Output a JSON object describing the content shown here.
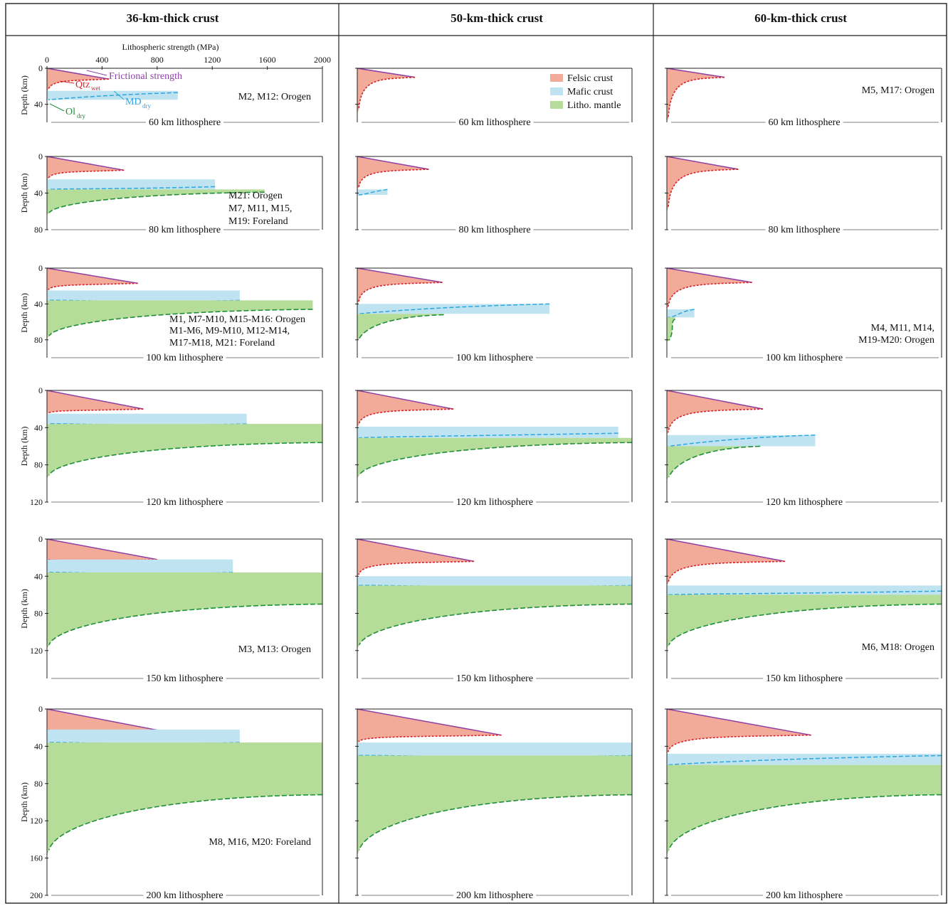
{
  "columns": [
    "36-km-thick crust",
    "50-km-thick crust",
    "60-km-thick crust"
  ],
  "axes": {
    "x_title": "Lithospheric strength (MPa)",
    "x_ticks": [
      "0",
      "400",
      "800",
      "1200",
      "1600",
      "2000"
    ],
    "y_title": "Depth (km)"
  },
  "legend": [
    {
      "label": "Felsic crust",
      "color": "#f2aa99"
    },
    {
      "label": "Mafic crust",
      "color": "#bfe3f0"
    },
    {
      "label": "Litho. mantle",
      "color": "#b5dc98"
    }
  ],
  "curve_labels": {
    "frictional": "Frictional strength",
    "qtz": "Qtz",
    "qtz_sub": "wet",
    "md": "MD",
    "md_sub": "dry",
    "ol": "Ol",
    "ol_sub": "dry"
  },
  "colors": {
    "felsic": "#f2aa99",
    "mafic": "#bfe3f0",
    "mantle": "#b5dc98",
    "frictional_line": "#8e3fa6",
    "qtz_line": "#d8242a",
    "md_line": "#2aa7e0",
    "ol_line": "#1f8f3a"
  },
  "rows": [
    {
      "lithosphere": "60 km lithosphere",
      "max_depth": 60,
      "y_ticks": [
        "0",
        "40"
      ],
      "notes": [
        [
          "M2, M12: Orogen"
        ],
        [],
        [
          "M5, M17: Orogen"
        ]
      ]
    },
    {
      "lithosphere": "80 km lithosphere",
      "max_depth": 80,
      "y_ticks": [
        "0",
        "40",
        "80"
      ],
      "notes": [
        [
          "M21: Orogen",
          "M7, M11, M15,",
          "M19: Foreland"
        ],
        [],
        []
      ]
    },
    {
      "lithosphere": "100 km lithosphere",
      "max_depth": 100,
      "y_ticks": [
        "0",
        "40",
        "80"
      ],
      "notes": [
        [
          "M1, M7-M10, M15-M16: Orogen",
          "M1-M6, M9-M10, M12-M14,",
          "M17-M18, M21: Foreland"
        ],
        [],
        [
          "M4, M11, M14,",
          "M19-M20: Orogen"
        ]
      ]
    },
    {
      "lithosphere": "120 km lithosphere",
      "max_depth": 120,
      "y_ticks": [
        "0",
        "40",
        "80",
        "120"
      ],
      "notes": [
        [],
        [],
        []
      ]
    },
    {
      "lithosphere": "150 km lithosphere",
      "max_depth": 150,
      "y_ticks": [
        "0",
        "40",
        "80",
        "120"
      ],
      "notes": [
        [
          "M3, M13: Orogen"
        ],
        [],
        [
          "M6, M18: Orogen"
        ]
      ]
    },
    {
      "lithosphere": "200 km lithosphere",
      "max_depth": 200,
      "y_ticks": [
        "0",
        "40",
        "80",
        "120",
        "160",
        "200"
      ],
      "notes": [
        [
          "M8, M16, M20: Foreland"
        ],
        [],
        []
      ]
    }
  ],
  "profiles": {
    "36": [
      {
        "felsic_peak": [
          450,
          12
        ],
        "mafic": [
          25,
          35
        ],
        "mafic_peak": [
          950,
          27
        ],
        "mantle_peak": [
          0,
          46
        ],
        "max": 0
      },
      {
        "felsic_peak": [
          560,
          15
        ],
        "mafic": [
          25,
          36
        ],
        "mafic_peak": [
          1220,
          33
        ],
        "mantle_peak": [
          1580,
          39
        ]
      },
      {
        "felsic_peak": [
          660,
          17
        ],
        "mafic": [
          25,
          36
        ],
        "mafic_peak": [
          1400,
          36
        ],
        "mantle_peak": [
          1930,
          46
        ]
      },
      {
        "felsic_peak": [
          700,
          20
        ],
        "mafic": [
          25,
          36
        ],
        "mafic_peak": [
          1450,
          36
        ],
        "mantle_peak": [
          2000,
          56
        ]
      },
      {
        "felsic_peak": [
          800,
          22
        ],
        "mafic": [
          22,
          36
        ],
        "mafic_peak": [
          1350,
          36
        ],
        "mantle_peak": [
          2000,
          70
        ]
      },
      {
        "felsic_peak": [
          850,
          24
        ],
        "mafic": [
          22,
          36
        ],
        "mafic_peak": [
          1400,
          36
        ],
        "mantle_peak": [
          2000,
          92
        ]
      }
    ],
    "50": [
      {
        "felsic_peak": [
          420,
          10
        ],
        "mafic": [
          0,
          0
        ],
        "mafic_peak": [
          0,
          40
        ],
        "mantle_peak": [
          0,
          55
        ]
      },
      {
        "felsic_peak": [
          520,
          14
        ],
        "mafic": [
          36,
          42
        ],
        "mafic_peak": [
          220,
          36
        ],
        "mantle_peak": [
          0,
          55
        ]
      },
      {
        "felsic_peak": [
          620,
          16
        ],
        "mafic": [
          40,
          51
        ],
        "mafic_peak": [
          1400,
          40
        ],
        "mantle_peak": [
          630,
          52
        ]
      },
      {
        "felsic_peak": [
          700,
          20
        ],
        "mafic": [
          39,
          51
        ],
        "mafic_peak": [
          1900,
          46
        ],
        "mantle_peak": [
          2000,
          56
        ]
      },
      {
        "felsic_peak": [
          850,
          24
        ],
        "mafic": [
          40,
          50
        ],
        "mafic_peak": [
          2000,
          50
        ],
        "mantle_peak": [
          2000,
          70
        ]
      },
      {
        "felsic_peak": [
          1050,
          28
        ],
        "mafic": [
          36,
          50
        ],
        "mafic_peak": [
          2000,
          50
        ],
        "mantle_peak": [
          2000,
          92
        ]
      }
    ],
    "60": [
      {
        "felsic_peak": [
          420,
          10
        ],
        "mafic": [
          0,
          0
        ],
        "mafic_peak": [
          0,
          50
        ],
        "mantle_peak": [
          0,
          60
        ]
      },
      {
        "felsic_peak": [
          520,
          14
        ],
        "mafic": [
          0,
          0
        ],
        "mafic_peak": [
          50,
          50
        ],
        "mantle_peak": [
          0,
          60
        ]
      },
      {
        "felsic_peak": [
          620,
          16
        ],
        "mafic": [
          46,
          55
        ],
        "mafic_peak": [
          200,
          46
        ],
        "mantle_peak": [
          60,
          57
        ]
      },
      {
        "felsic_peak": [
          700,
          20
        ],
        "mafic": [
          48,
          60
        ],
        "mafic_peak": [
          1080,
          48
        ],
        "mantle_peak": [
          680,
          60
        ]
      },
      {
        "felsic_peak": [
          860,
          24
        ],
        "mafic": [
          50,
          60
        ],
        "mafic_peak": [
          2000,
          56
        ],
        "mantle_peak": [
          2000,
          70
        ]
      },
      {
        "felsic_peak": [
          1050,
          28
        ],
        "mafic": [
          48,
          60
        ],
        "mafic_peak": [
          2000,
          50
        ],
        "mantle_peak": [
          2000,
          92
        ]
      }
    ]
  }
}
